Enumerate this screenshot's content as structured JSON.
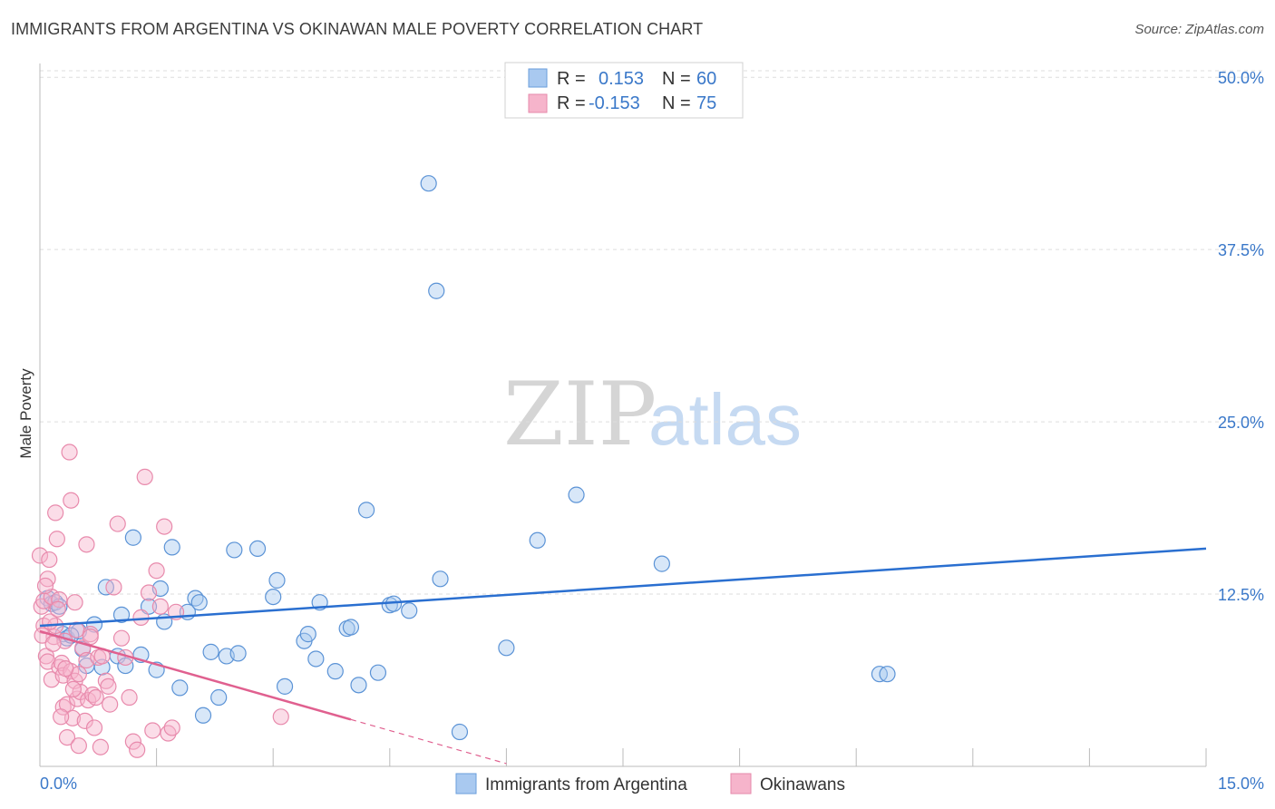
{
  "title": "IMMIGRANTS FROM ARGENTINA VS OKINAWAN MALE POVERTY CORRELATION CHART",
  "source": "Source: ZipAtlas.com",
  "watermark": {
    "zip": "ZIP",
    "atlas": "atlas"
  },
  "colors": {
    "blue": "#3a78c9",
    "blue_fill": "#a9c9f0",
    "blue_line": "#2a6fd0",
    "pink": "#e0608f",
    "pink_fill": "#f6b4cb",
    "pink_line": "#e0608f",
    "grid": "#dddddd"
  },
  "legend": {
    "rows": [
      {
        "r_label": "R =",
        "r_value": "0.153",
        "n_label": "N =",
        "n_value": "60"
      },
      {
        "r_label": "R =",
        "r_value": "-0.153",
        "n_label": "N =",
        "n_value": "75"
      }
    ]
  },
  "chart_data": {
    "type": "scatter",
    "title": "IMMIGRANTS FROM ARGENTINA VS OKINAWAN MALE POVERTY CORRELATION CHART",
    "xlabel": "",
    "ylabel": "Male Poverty",
    "xlim": [
      0,
      15
    ],
    "ylim": [
      0,
      51
    ],
    "x_tick_labels": [
      "0.0%",
      "15.0%"
    ],
    "y_ticks": [
      12.5,
      25.0,
      37.5,
      50.0
    ],
    "y_tick_labels": [
      "12.5%",
      "25.0%",
      "37.5%",
      "50.0%"
    ],
    "grid": true,
    "legend_position": "bottom-center",
    "series": [
      {
        "name": "Immigrants from Argentina",
        "trend": {
          "x": [
            0,
            15
          ],
          "y": [
            10.2,
            15.8
          ]
        },
        "points": [
          [
            0.1,
            12.2
          ],
          [
            0.15,
            11.8
          ],
          [
            0.2,
            11.9
          ],
          [
            0.3,
            9.6
          ],
          [
            0.35,
            9.3
          ],
          [
            0.5,
            9.8
          ],
          [
            0.55,
            8.5
          ],
          [
            0.6,
            7.3
          ],
          [
            0.7,
            10.3
          ],
          [
            0.8,
            7.2
          ],
          [
            0.85,
            13.0
          ],
          [
            1.0,
            8.0
          ],
          [
            1.05,
            11.0
          ],
          [
            1.1,
            7.3
          ],
          [
            1.2,
            16.6
          ],
          [
            1.3,
            8.1
          ],
          [
            1.4,
            11.6
          ],
          [
            1.5,
            7.0
          ],
          [
            1.55,
            12.9
          ],
          [
            1.6,
            10.5
          ],
          [
            1.7,
            15.9
          ],
          [
            1.8,
            5.7
          ],
          [
            1.9,
            11.2
          ],
          [
            2.0,
            12.2
          ],
          [
            2.05,
            11.9
          ],
          [
            2.1,
            3.7
          ],
          [
            2.2,
            8.3
          ],
          [
            2.3,
            5.0
          ],
          [
            2.4,
            8.0
          ],
          [
            2.5,
            15.7
          ],
          [
            2.55,
            8.2
          ],
          [
            2.8,
            15.8
          ],
          [
            3.0,
            12.3
          ],
          [
            3.05,
            13.5
          ],
          [
            3.15,
            5.8
          ],
          [
            3.4,
            9.1
          ],
          [
            3.45,
            9.6
          ],
          [
            3.55,
            7.8
          ],
          [
            3.6,
            11.9
          ],
          [
            3.8,
            6.9
          ],
          [
            3.95,
            10.0
          ],
          [
            4.0,
            10.1
          ],
          [
            4.1,
            5.9
          ],
          [
            4.2,
            18.6
          ],
          [
            4.35,
            6.8
          ],
          [
            4.5,
            11.7
          ],
          [
            4.55,
            11.8
          ],
          [
            4.75,
            11.3
          ],
          [
            5.0,
            42.3
          ],
          [
            5.1,
            34.5
          ],
          [
            5.15,
            13.6
          ],
          [
            5.4,
            2.5
          ],
          [
            6.0,
            8.6
          ],
          [
            6.4,
            16.4
          ],
          [
            6.9,
            19.7
          ],
          [
            8.0,
            14.7
          ],
          [
            10.8,
            6.7
          ],
          [
            10.9,
            6.7
          ],
          [
            0.25,
            11.6
          ],
          [
            0.4,
            9.5
          ]
        ]
      },
      {
        "name": "Okinawans",
        "trend": {
          "x": [
            0,
            4
          ],
          "y": [
            9.8,
            3.4
          ]
        },
        "trend_dashed": {
          "x": [
            4,
            6
          ],
          "y": [
            3.4,
            0.2
          ]
        },
        "points": [
          [
            0.0,
            15.3
          ],
          [
            0.02,
            11.6
          ],
          [
            0.05,
            12.0
          ],
          [
            0.05,
            10.2
          ],
          [
            0.08,
            8.0
          ],
          [
            0.1,
            7.6
          ],
          [
            0.1,
            13.6
          ],
          [
            0.12,
            15.0
          ],
          [
            0.15,
            12.3
          ],
          [
            0.15,
            6.3
          ],
          [
            0.18,
            9.4
          ],
          [
            0.2,
            10.2
          ],
          [
            0.2,
            18.4
          ],
          [
            0.22,
            16.5
          ],
          [
            0.25,
            7.2
          ],
          [
            0.25,
            12.1
          ],
          [
            0.28,
            7.5
          ],
          [
            0.3,
            6.6
          ],
          [
            0.3,
            4.3
          ],
          [
            0.32,
            9.1
          ],
          [
            0.35,
            4.5
          ],
          [
            0.35,
            2.1
          ],
          [
            0.38,
            22.8
          ],
          [
            0.4,
            19.3
          ],
          [
            0.4,
            6.9
          ],
          [
            0.42,
            3.5
          ],
          [
            0.45,
            6.2
          ],
          [
            0.45,
            11.9
          ],
          [
            0.48,
            4.9
          ],
          [
            0.5,
            1.5
          ],
          [
            0.5,
            6.7
          ],
          [
            0.52,
            5.4
          ],
          [
            0.55,
            8.6
          ],
          [
            0.58,
            3.3
          ],
          [
            0.6,
            16.1
          ],
          [
            0.6,
            7.7
          ],
          [
            0.62,
            4.8
          ],
          [
            0.65,
            9.6
          ],
          [
            0.65,
            9.4
          ],
          [
            0.68,
            5.2
          ],
          [
            0.7,
            2.8
          ],
          [
            0.72,
            5.0
          ],
          [
            0.75,
            7.9
          ],
          [
            0.78,
            1.4
          ],
          [
            0.8,
            8.0
          ],
          [
            0.85,
            6.2
          ],
          [
            0.88,
            5.8
          ],
          [
            0.9,
            4.5
          ],
          [
            0.95,
            13.0
          ],
          [
            1.0,
            17.6
          ],
          [
            1.05,
            9.3
          ],
          [
            1.1,
            7.9
          ],
          [
            1.15,
            5.0
          ],
          [
            1.2,
            1.8
          ],
          [
            1.25,
            1.2
          ],
          [
            1.3,
            10.8
          ],
          [
            1.35,
            21.0
          ],
          [
            1.4,
            12.6
          ],
          [
            1.45,
            2.6
          ],
          [
            1.5,
            14.2
          ],
          [
            1.55,
            11.6
          ],
          [
            1.6,
            17.4
          ],
          [
            1.65,
            2.4
          ],
          [
            1.7,
            2.8
          ],
          [
            1.75,
            11.2
          ],
          [
            3.1,
            3.6
          ],
          [
            0.03,
            9.5
          ],
          [
            0.07,
            13.1
          ],
          [
            0.13,
            10.5
          ],
          [
            0.17,
            8.9
          ],
          [
            0.23,
            11.4
          ],
          [
            0.27,
            3.6
          ],
          [
            0.33,
            7.1
          ],
          [
            0.43,
            5.6
          ],
          [
            0.47,
            9.9
          ]
        ]
      }
    ]
  },
  "bottom_legend": [
    {
      "label": "Immigrants from Argentina"
    },
    {
      "label": "Okinawans"
    }
  ]
}
